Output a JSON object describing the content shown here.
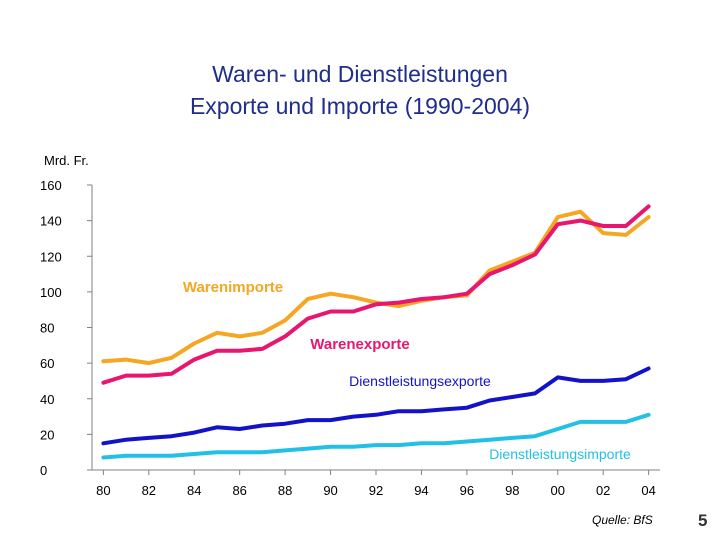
{
  "title_lines": [
    "Waren- und Dienstleistungen",
    "Exporte und Importe (1990-2004)"
  ],
  "source": "Quelle: BfS",
  "page_number": "5",
  "chart_data": {
    "type": "line",
    "title": "Waren- und Dienstleistungen Exporte und Importe (1990-2004)",
    "xlabel": "",
    "ylabel": "Mrd. Fr.",
    "ylim": [
      0,
      160
    ],
    "yticks": [
      0,
      20,
      40,
      60,
      80,
      100,
      120,
      140,
      160
    ],
    "xticks": [
      "80",
      "82",
      "84",
      "86",
      "88",
      "90",
      "92",
      "94",
      "96",
      "98",
      "00",
      "02",
      "04"
    ],
    "grid": false,
    "x": [
      1980,
      1981,
      1982,
      1983,
      1984,
      1985,
      1986,
      1987,
      1988,
      1989,
      1990,
      1991,
      1992,
      1993,
      1994,
      1995,
      1996,
      1997,
      1998,
      1999,
      2000,
      2001,
      2002,
      2003,
      2004
    ],
    "series": [
      {
        "name": "Warenimporte",
        "color": "#f5a623",
        "values": [
          61,
          62,
          60,
          63,
          71,
          77,
          75,
          77,
          84,
          96,
          99,
          97,
          94,
          92,
          95,
          97,
          98,
          112,
          117,
          122,
          142,
          145,
          133,
          132,
          142
        ]
      },
      {
        "name": "Warenexporte",
        "color": "#e8166e",
        "values": [
          49,
          53,
          53,
          54,
          62,
          67,
          67,
          68,
          75,
          85,
          89,
          89,
          93,
          94,
          96,
          97,
          99,
          110,
          115,
          121,
          138,
          140,
          137,
          137,
          148
        ]
      },
      {
        "name": "Dienstleistungsexporte",
        "color": "#1212c8",
        "values": [
          15,
          17,
          18,
          19,
          21,
          24,
          23,
          25,
          26,
          28,
          28,
          30,
          31,
          33,
          33,
          34,
          35,
          39,
          41,
          43,
          52,
          50,
          50,
          51,
          57
        ]
      },
      {
        "name": "Dienstleistungsimporte",
        "color": "#22c0e6",
        "values": [
          7,
          8,
          8,
          8,
          9,
          10,
          10,
          10,
          11,
          12,
          13,
          13,
          14,
          14,
          15,
          15,
          16,
          17,
          18,
          19,
          23,
          27,
          27,
          27,
          31
        ]
      }
    ]
  }
}
